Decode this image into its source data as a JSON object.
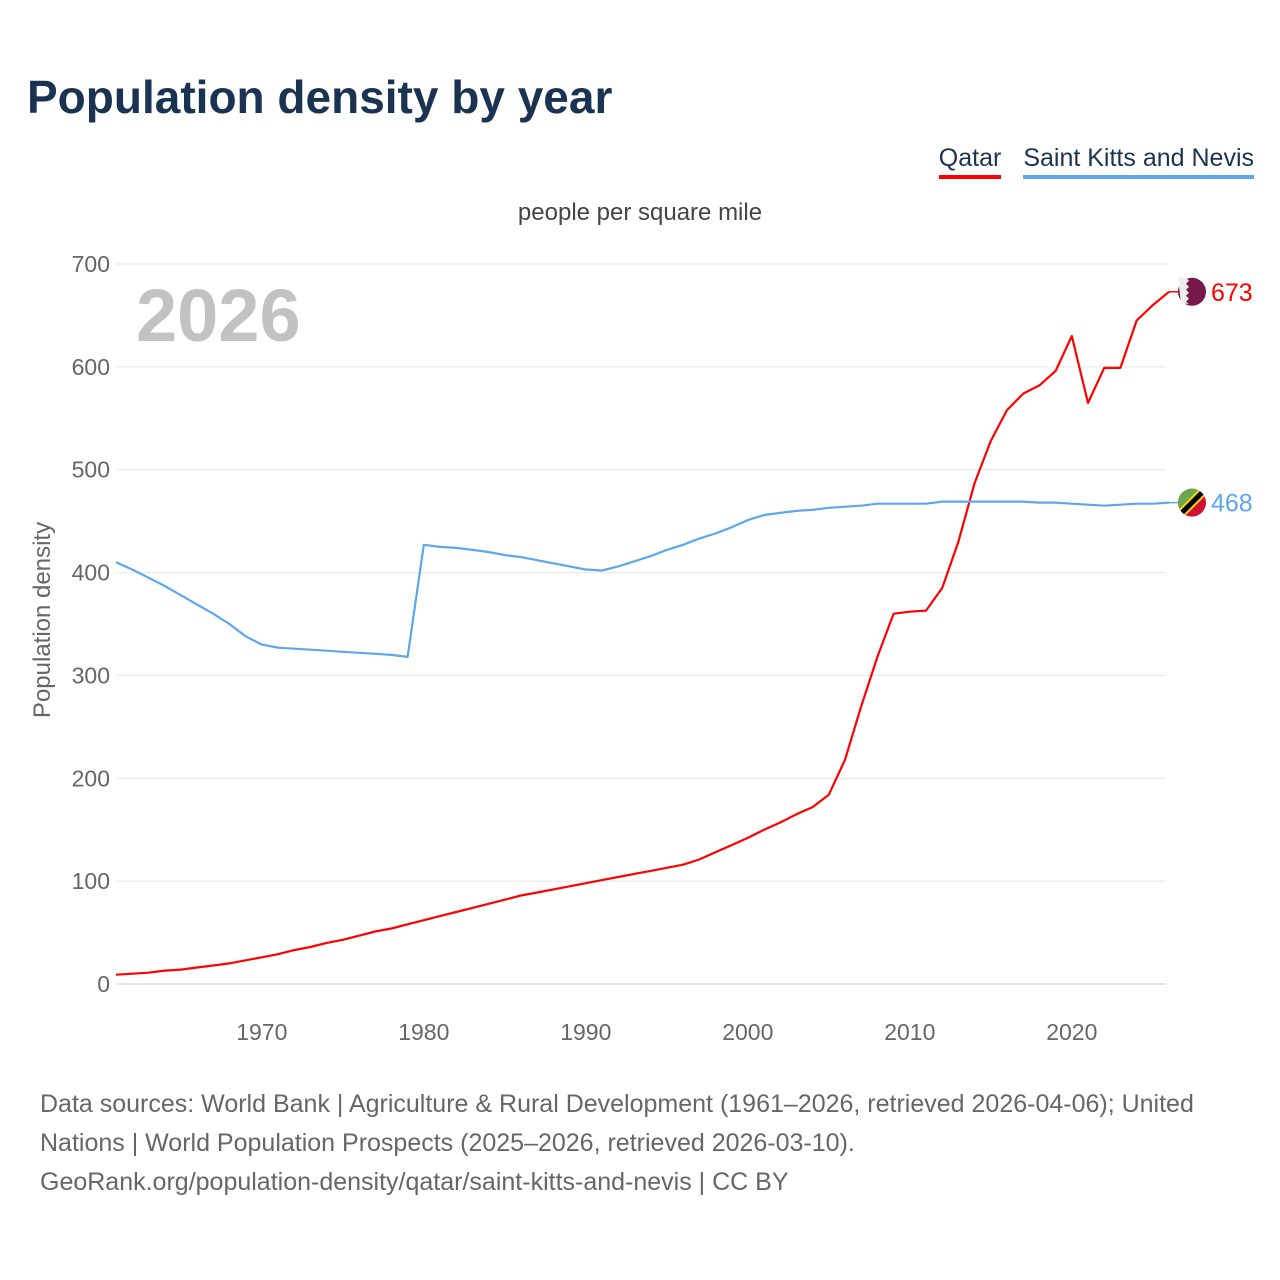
{
  "title": "Population density by year",
  "legend": [
    {
      "label": "Qatar",
      "color": "#ff0000"
    },
    {
      "label": "Saint Kitts and Nevis",
      "color": "#5ba7ef"
    }
  ],
  "footer": {
    "line1": "Data sources: World Bank | Agriculture & Rural Development (1961–2026, retrieved 2026-04-06); United Nations | World Population Prospects (2025–2026, retrieved 2026-03-10).",
    "line2": "GeoRank.org/population-density/qatar/saint-kitts-and-nevis | CC BY"
  },
  "chart_data": {
    "type": "line",
    "title": "Population density by year",
    "subtitle": "people per square mile",
    "ylabel": "Population density",
    "xlabel": "",
    "year_watermark": "2026",
    "ylim": [
      0,
      700
    ],
    "xlim": [
      1961,
      2026
    ],
    "yticks": [
      0,
      100,
      200,
      300,
      400,
      500,
      600,
      700
    ],
    "xticks": [
      1970,
      1980,
      1990,
      2000,
      2010,
      2020
    ],
    "grid": true,
    "legend_position": "top-right",
    "x": [
      1961,
      1962,
      1963,
      1964,
      1965,
      1966,
      1967,
      1968,
      1969,
      1970,
      1971,
      1972,
      1973,
      1974,
      1975,
      1976,
      1977,
      1978,
      1979,
      1980,
      1981,
      1982,
      1983,
      1984,
      1985,
      1986,
      1987,
      1988,
      1989,
      1990,
      1991,
      1992,
      1993,
      1994,
      1995,
      1996,
      1997,
      1998,
      1999,
      2000,
      2001,
      2002,
      2003,
      2004,
      2005,
      2006,
      2007,
      2008,
      2009,
      2010,
      2011,
      2012,
      2013,
      2014,
      2015,
      2016,
      2017,
      2018,
      2019,
      2020,
      2021,
      2022,
      2023,
      2024,
      2025,
      2026
    ],
    "series": [
      {
        "name": "Qatar",
        "color": "#ff0000",
        "end_label": "673",
        "flag": "qatar-flag",
        "values": [
          9,
          10,
          11,
          13,
          14,
          16,
          18,
          20,
          23,
          26,
          29,
          33,
          36,
          40,
          43,
          47,
          51,
          54,
          58,
          62,
          66,
          70,
          74,
          78,
          82,
          86,
          89,
          92,
          95,
          98,
          101,
          104,
          107,
          110,
          113,
          116,
          121,
          128,
          135,
          142,
          150,
          157,
          165,
          172,
          184,
          218,
          270,
          318,
          360,
          362,
          363,
          385,
          430,
          487,
          528,
          558,
          574,
          582,
          596,
          630,
          565,
          599,
          599,
          645,
          660,
          673
        ]
      },
      {
        "name": "Saint Kitts and Nevis",
        "color": "#5ba7ef",
        "end_label": "468",
        "flag": "saint-kitts-and-nevis-flag",
        "values": [
          410,
          403,
          395,
          387,
          378,
          369,
          360,
          350,
          338,
          330,
          327,
          326,
          325,
          324,
          323,
          322,
          321,
          320,
          318,
          427,
          425,
          424,
          422,
          420,
          417,
          415,
          412,
          409,
          406,
          403,
          402,
          406,
          411,
          416,
          422,
          427,
          433,
          438,
          444,
          451,
          456,
          458,
          460,
          461,
          463,
          464,
          465,
          467,
          467,
          467,
          467,
          469,
          469,
          469,
          469,
          469,
          469,
          468,
          468,
          467,
          466,
          465,
          466,
          467,
          467,
          468
        ]
      }
    ]
  }
}
